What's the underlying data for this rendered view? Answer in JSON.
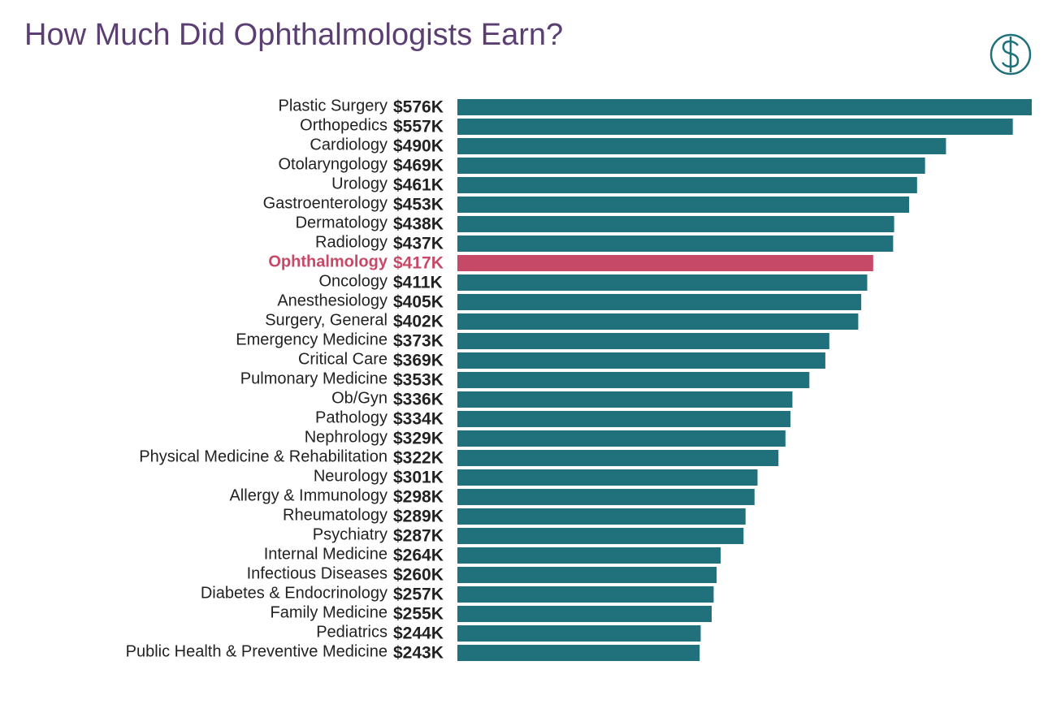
{
  "chart_data": {
    "type": "bar",
    "orientation": "horizontal",
    "title": "How Much Did Ophthalmologists Earn?",
    "categories": [
      "Plastic Surgery",
      "Orthopedics",
      "Cardiology",
      "Otolaryngology",
      "Urology",
      "Gastroenterology",
      "Dermatology",
      "Radiology",
      "Ophthalmology",
      "Oncology",
      "Anesthesiology",
      "Surgery, General",
      "Emergency Medicine",
      "Critical Care",
      "Pulmonary Medicine",
      "Ob/Gyn",
      "Pathology",
      "Nephrology",
      "Physical Medicine & Rehabilitation",
      "Neurology",
      "Allergy & Immunology",
      "Rheumatology",
      "Psychiatry",
      "Internal Medicine",
      "Infectious Diseases",
      "Diabetes & Endocrinology",
      "Family Medicine",
      "Pediatrics",
      "Public Health & Preventive Medicine"
    ],
    "values": [
      576,
      557,
      490,
      469,
      461,
      453,
      438,
      437,
      417,
      411,
      405,
      402,
      373,
      369,
      353,
      336,
      334,
      329,
      322,
      301,
      298,
      289,
      287,
      264,
      260,
      257,
      255,
      244,
      243
    ],
    "value_labels": [
      "$576K",
      "$557K",
      "$490K",
      "$469K",
      "$461K",
      "$453K",
      "$438K",
      "$437K",
      "$417K",
      "$411K",
      "$405K",
      "$402K",
      "$373K",
      "$369K",
      "$353K",
      "$336K",
      "$334K",
      "$329K",
      "$322K",
      "$301K",
      "$298K",
      "$289K",
      "$287K",
      "$264K",
      "$260K",
      "$257K",
      "$255K",
      "$244K",
      "$243K"
    ],
    "colors": [
      "#20717b",
      "#20717b",
      "#20717b",
      "#20717b",
      "#20717b",
      "#20717b",
      "#20717b",
      "#20717b",
      "#c64a68",
      "#20717b",
      "#20717b",
      "#20717b",
      "#20717b",
      "#20717b",
      "#20717b",
      "#20717b",
      "#20717b",
      "#20717b",
      "#20717b",
      "#20717b",
      "#20717b",
      "#20717b",
      "#20717b",
      "#20717b",
      "#20717b",
      "#20717b",
      "#20717b",
      "#20717b",
      "#20717b"
    ]
  }
}
